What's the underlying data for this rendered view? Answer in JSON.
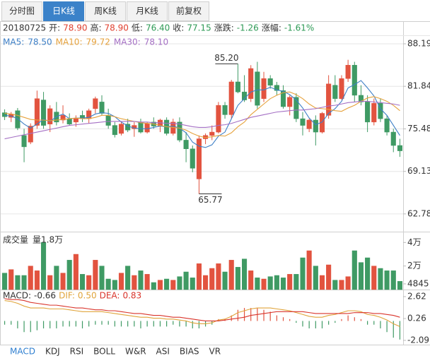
{
  "tabs": [
    "分时图",
    "日K线",
    "周K线",
    "月K线",
    "前复权"
  ],
  "info": {
    "date": "20180725",
    "fields": [
      {
        "label": "开:",
        "value": "78.90",
        "color": "#e0402f"
      },
      {
        "label": "高:",
        "value": "78.90",
        "color": "#e0402f"
      },
      {
        "label": "低:",
        "value": "76.40",
        "color": "#2e9a55"
      },
      {
        "label": "收:",
        "value": "77.15",
        "color": "#2e9a55"
      },
      {
        "label": "涨跌:",
        "value": "-1.26",
        "color": "#2e9a55"
      },
      {
        "label": "涨幅:",
        "value": "-1.61%",
        "color": "#2e9a55"
      }
    ]
  },
  "chart_data": [
    {
      "type": "candlestick",
      "up_color": "#e2533f",
      "down_color": "#3f9a64",
      "open": [
        77.9,
        77.2,
        78.2,
        74.5,
        73.5,
        76.0,
        79.8,
        76.2,
        78.0,
        76.8,
        77.0,
        76.5,
        77.5,
        77.0,
        78.5,
        79.5,
        77.5,
        76.0,
        74.8,
        76.2,
        75.5,
        76.5,
        75.0,
        76.5,
        75.9,
        76.8,
        74.8,
        76.5,
        73.8,
        72.5,
        68.0,
        74.0,
        74.5,
        75.0,
        79.0,
        77.6,
        82.5,
        81.0,
        80.0,
        84.0,
        80.0,
        83.0,
        82.0,
        81.2,
        78.8,
        80.2,
        77.0,
        75.5,
        76.8,
        75.0,
        77.5,
        82.0,
        80.0,
        83.0,
        85.0,
        80.5,
        79.5,
        76.5,
        79.3,
        77.0,
        75.0,
        73.0
      ],
      "high": [
        78.4,
        78.0,
        78.6,
        75.5,
        76.3,
        81.2,
        81.0,
        79.0,
        79.5,
        79.0,
        77.8,
        77.5,
        78.2,
        78.5,
        80.3,
        80.5,
        78.5,
        76.5,
        76.5,
        77.0,
        76.5,
        77.0,
        76.5,
        77.2,
        77.0,
        77.2,
        77.0,
        77.2,
        75.0,
        73.0,
        74.5,
        74.8,
        76.0,
        79.5,
        79.5,
        82.8,
        85.2,
        83.5,
        85.0,
        85.5,
        84.0,
        83.5,
        82.5,
        82.0,
        80.5,
        80.8,
        78.0,
        77.0,
        77.5,
        78.0,
        83.5,
        83.5,
        83.5,
        85.8,
        85.5,
        82.0,
        80.5,
        80.0,
        80.0,
        77.5,
        75.5,
        74.0
      ],
      "low": [
        76.8,
        76.5,
        75.3,
        70.5,
        73.2,
        75.5,
        75.5,
        75.0,
        76.0,
        76.3,
        76.0,
        75.8,
        76.5,
        76.3,
        77.8,
        77.5,
        75.5,
        74.2,
        74.5,
        75.0,
        74.3,
        74.8,
        74.8,
        75.5,
        75.0,
        74.5,
        74.5,
        73.5,
        70.5,
        69.0,
        65.77,
        73.2,
        73.8,
        74.8,
        77.0,
        77.0,
        80.8,
        79.5,
        79.5,
        78.5,
        79.5,
        81.5,
        80.5,
        78.5,
        77.5,
        76.5,
        74.5,
        75.0,
        73.0,
        74.8,
        77.0,
        79.5,
        79.8,
        82.5,
        79.5,
        79.0,
        75.0,
        76.0,
        76.5,
        74.5,
        72.0,
        71.3
      ],
      "close": [
        77.3,
        77.7,
        75.6,
        72.8,
        75.9,
        80.0,
        76.0,
        78.5,
        76.5,
        77.5,
        76.2,
        77.0,
        77.0,
        78.2,
        80.0,
        77.8,
        76.0,
        74.6,
        76.2,
        75.3,
        76.0,
        75.0,
        76.3,
        75.9,
        76.8,
        74.8,
        76.5,
        73.8,
        72.5,
        69.6,
        74.0,
        74.5,
        75.0,
        79.0,
        77.6,
        82.5,
        81.0,
        79.8,
        84.5,
        79.0,
        83.0,
        82.0,
        81.2,
        78.8,
        80.2,
        77.0,
        76.0,
        76.8,
        75.0,
        77.8,
        82.2,
        80.0,
        83.0,
        85.0,
        80.5,
        79.5,
        76.5,
        79.3,
        77.0,
        75.0,
        73.0,
        72.2
      ],
      "series": [
        {
          "name": "MA5:",
          "value_label": "78.50",
          "color": "#3d7fc6",
          "values": [
            77.5,
            77.4,
            77.0,
            76.2,
            75.6,
            76.2,
            76.9,
            76.6,
            77.3,
            77.7,
            77.0,
            77.1,
            77.1,
            77.2,
            77.7,
            77.9,
            77.8,
            77.3,
            76.5,
            75.9,
            75.6,
            75.5,
            75.5,
            75.7,
            75.9,
            75.8,
            75.9,
            75.6,
            74.9,
            73.5,
            72.9,
            72.7,
            73.1,
            74.4,
            75.0,
            77.0,
            79.0,
            80.0,
            81.0,
            81.3,
            81.3,
            81.7,
            81.3,
            81.1,
            80.6,
            79.8,
            78.6,
            77.1,
            76.1,
            76.5,
            77.8,
            78.5,
            79.6,
            81.6,
            82.1,
            82.7,
            81.6,
            80.4,
            78.5,
            77.5,
            76.0,
            74.5
          ]
        },
        {
          "name": "MA10:",
          "value_label": "79.72",
          "color": "#e6a23c",
          "values": [
            77.8,
            77.7,
            77.5,
            77.2,
            76.9,
            76.8,
            76.8,
            76.7,
            76.8,
            76.9,
            77.0,
            77.1,
            77.0,
            77.0,
            77.2,
            77.5,
            77.5,
            77.3,
            77.0,
            76.8,
            76.6,
            76.4,
            76.3,
            76.2,
            76.0,
            75.8,
            75.7,
            75.6,
            75.3,
            74.8,
            74.4,
            74.2,
            74.3,
            74.5,
            74.4,
            74.9,
            75.8,
            76.5,
            77.6,
            78.4,
            79.2,
            80.0,
            80.5,
            80.9,
            81.0,
            80.6,
            80.0,
            79.2,
            78.6,
            78.5,
            78.4,
            78.2,
            78.1,
            78.6,
            79.0,
            79.6,
            80.1,
            80.3,
            80.0,
            79.6,
            79.0,
            78.2
          ]
        },
        {
          "name": "MA30:",
          "value_label": "78.10",
          "color": "#a46fc4",
          "values": [
            74.0,
            74.2,
            74.4,
            74.6,
            74.8,
            75.0,
            75.2,
            75.4,
            75.6,
            75.8,
            76.0,
            76.1,
            76.2,
            76.3,
            76.4,
            76.5,
            76.6,
            76.6,
            76.6,
            76.6,
            76.6,
            76.5,
            76.5,
            76.4,
            76.4,
            76.3,
            76.3,
            76.2,
            76.0,
            75.8,
            75.7,
            75.7,
            75.8,
            76.0,
            76.1,
            76.3,
            76.6,
            76.9,
            77.2,
            77.4,
            77.6,
            77.8,
            78.0,
            78.1,
            78.2,
            78.3,
            78.3,
            78.4,
            78.5,
            78.7,
            78.9,
            79.0,
            79.2,
            79.4,
            79.5,
            79.6,
            79.6,
            79.5,
            79.4,
            79.3,
            79.2,
            79.0
          ]
        }
      ],
      "annotations": [
        {
          "value": 85.2,
          "label": "85.20"
        },
        {
          "value": 65.77,
          "label": "65.77"
        }
      ],
      "ylim": [
        60.13,
        89.67
      ],
      "yticks": [
        88.19,
        81.84,
        75.48,
        69.13,
        62.78
      ],
      "grid": true
    },
    {
      "type": "bar",
      "title": "成交量",
      "subtitle": "量1.8万",
      "values": [
        14000,
        17000,
        12000,
        12000,
        20000,
        16000,
        40000,
        12000,
        20000,
        14000,
        25000,
        30000,
        13000,
        12000,
        25000,
        20000,
        9000,
        8000,
        14000,
        20000,
        12000,
        16000,
        13000,
        6000,
        8000,
        9000,
        8000,
        11000,
        15000,
        10000,
        22000,
        12000,
        18000,
        22000,
        15000,
        25000,
        19000,
        26000,
        16000,
        10000,
        9000,
        11000,
        12000,
        10000,
        13000,
        13000,
        27000,
        33000,
        20000,
        12000,
        21000,
        8000,
        8000,
        11000,
        33000,
        23000,
        27000,
        20000,
        18000,
        16000,
        16000,
        7000
      ],
      "ylim": [
        0,
        48000
      ],
      "yticks": [
        {
          "value": 40000,
          "label": "4万"
        },
        {
          "value": 20000,
          "label": "2万"
        },
        4845
      ]
    },
    {
      "type": "macd",
      "bars": {
        "name": "MACD:",
        "value_label": "-0.66",
        "color": "#333333",
        "values": [
          -0.4,
          -0.4,
          -0.8,
          -1.2,
          -1.2,
          -1.0,
          -0.8,
          -0.8,
          -0.8,
          -0.6,
          -0.6,
          -0.6,
          -0.8,
          -0.6,
          -0.4,
          -0.4,
          -0.4,
          -0.6,
          -0.6,
          -0.6,
          -0.6,
          -0.8,
          -0.6,
          -0.6,
          -0.6,
          -0.6,
          -0.4,
          -0.6,
          -0.6,
          -0.8,
          -0.8,
          -0.6,
          -0.4,
          0.2,
          0.2,
          0.6,
          1.2,
          1.4,
          1.4,
          1.4,
          1.2,
          1.0,
          0.6,
          0.4,
          0.2,
          -0.2,
          -0.6,
          -0.8,
          -0.8,
          -0.8,
          -0.4,
          -0.2,
          0.2,
          0.6,
          0.4,
          0.2,
          -0.4,
          -0.4,
          -0.8,
          -1.2,
          -1.8,
          -2.0
        ]
      },
      "series": [
        {
          "name": "DIF:",
          "value_label": "0.50",
          "color": "#e0a43a",
          "values": [
            2.2,
            2.1,
            1.9,
            1.6,
            1.4,
            1.4,
            1.4,
            1.3,
            1.3,
            1.3,
            1.2,
            1.1,
            1.0,
            1.0,
            1.0,
            1.0,
            0.9,
            0.8,
            0.7,
            0.6,
            0.5,
            0.4,
            0.4,
            0.3,
            0.3,
            0.2,
            0.2,
            0.1,
            0.0,
            -0.2,
            -0.3,
            -0.3,
            -0.2,
            0.1,
            0.2,
            0.5,
            0.9,
            1.1,
            1.3,
            1.4,
            1.4,
            1.4,
            1.3,
            1.2,
            1.1,
            0.9,
            0.7,
            0.5,
            0.4,
            0.4,
            0.6,
            0.7,
            0.9,
            1.1,
            1.1,
            1.0,
            0.7,
            0.6,
            0.4,
            0.1,
            -0.3,
            -0.6
          ]
        },
        {
          "name": "DEA:",
          "value_label": "0.83",
          "color": "#d9342b",
          "values": [
            2.4,
            2.3,
            2.3,
            2.2,
            2.0,
            1.9,
            1.8,
            1.7,
            1.7,
            1.6,
            1.5,
            1.4,
            1.4,
            1.3,
            1.2,
            1.2,
            1.1,
            1.1,
            1.0,
            0.9,
            0.8,
            0.8,
            0.7,
            0.6,
            0.6,
            0.5,
            0.4,
            0.4,
            0.3,
            0.2,
            0.1,
            0.0,
            0.0,
            0.0,
            0.1,
            0.2,
            0.3,
            0.4,
            0.6,
            0.7,
            0.8,
            0.9,
            1.0,
            1.0,
            1.0,
            1.0,
            1.0,
            0.9,
            0.8,
            0.8,
            0.8,
            0.8,
            0.8,
            0.8,
            0.9,
            0.9,
            0.9,
            0.8,
            0.8,
            0.7,
            0.6,
            0.4
          ]
        }
      ],
      "ylim": [
        -2.55,
        3.23
      ],
      "yticks": [
        2.62,
        0.26,
        -2.09
      ]
    }
  ],
  "indicator_tabs": [
    "MACD",
    "KDJ",
    "RSI",
    "BOLL",
    "W&R",
    "ASI",
    "BIAS",
    "VR"
  ]
}
